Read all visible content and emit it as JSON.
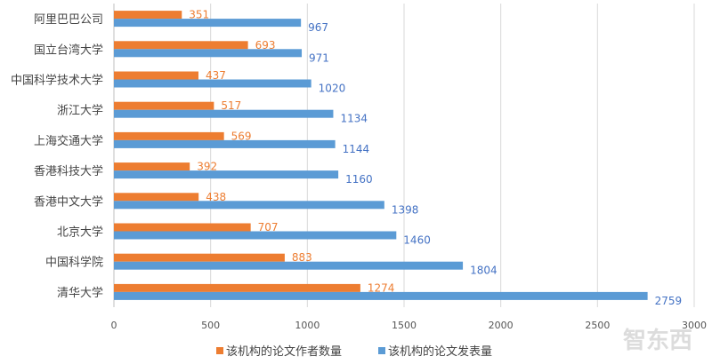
{
  "chart_data": {
    "type": "bar",
    "orientation": "horizontal",
    "categories": [
      "阿里巴巴公司",
      "国立台湾大学",
      "中国科学技术大学",
      "浙江大学",
      "上海交通大学",
      "香港科技大学",
      "香港中文大学",
      "北京大学",
      "中国科学院",
      "清华大学"
    ],
    "series": [
      {
        "name": "该机构的论文作者数量",
        "color": "#ED7D31",
        "values": [
          351,
          693,
          437,
          517,
          569,
          392,
          438,
          707,
          883,
          1274
        ]
      },
      {
        "name": "该机构的论文发表量",
        "color": "#5B9BD5",
        "values": [
          967,
          971,
          1020,
          1134,
          1144,
          1160,
          1398,
          1460,
          1804,
          2759
        ]
      }
    ],
    "xlim": [
      0,
      3000
    ],
    "xticks": [
      0,
      500,
      1000,
      1500,
      2000,
      2500,
      3000
    ],
    "grid": true,
    "data_labels": true,
    "legend_position": "bottom"
  },
  "watermark": "智东西"
}
